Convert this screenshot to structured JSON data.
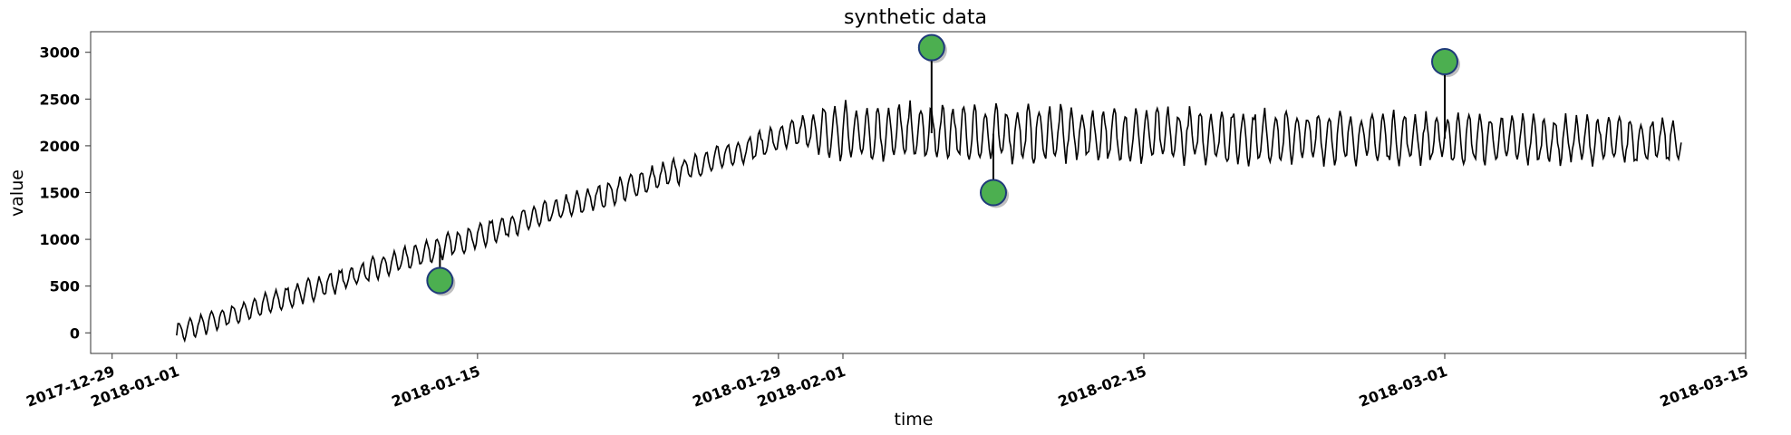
{
  "chart_data": {
    "type": "line",
    "title": "synthetic data",
    "xlabel": "time",
    "ylabel": "value",
    "x_range": [
      "2017-12-28",
      "2018-03-15"
    ],
    "ylim": [
      -220,
      3220
    ],
    "y_ticks": [
      0,
      500,
      1000,
      1500,
      2000,
      2500,
      3000
    ],
    "x_ticks": [
      {
        "date": "2017-12-29",
        "label": "2017-12-29"
      },
      {
        "date": "2018-01-01",
        "label": "2018-01-01"
      },
      {
        "date": "2018-01-15",
        "label": "2018-01-15"
      },
      {
        "date": "2018-01-29",
        "label": "2018-01-29"
      },
      {
        "date": "2018-02-01",
        "label": "2018-02-01"
      },
      {
        "date": "2018-02-15",
        "label": "2018-02-15"
      },
      {
        "date": "2018-03-01",
        "label": "2018-03-01"
      },
      {
        "date": "2018-03-15",
        "label": "2018-03-15"
      }
    ],
    "grid": false,
    "series": [
      {
        "line_color": "#000000",
        "start": "2018-01-01",
        "end": "2018-03-12",
        "points_per_day": 16,
        "period_days": 0.5,
        "trend": [
          {
            "date": "2018-01-01",
            "value": 0
          },
          {
            "date": "2018-01-30",
            "value": 2150
          },
          {
            "date": "2018-03-12",
            "value": 2050
          }
        ],
        "seasonal_amplitude": [
          {
            "date": "2018-01-01",
            "value": 100
          },
          {
            "date": "2018-01-30",
            "value": 130
          },
          {
            "date": "2018-01-31",
            "value": 280
          },
          {
            "date": "2018-03-12",
            "value": 220
          }
        ],
        "points": [
          {
            "date": "2018-01-01",
            "value": 20
          },
          {
            "date": "2018-01-05",
            "value": 250
          },
          {
            "date": "2018-01-10",
            "value": 680
          },
          {
            "date": "2018-01-15",
            "value": 1000
          },
          {
            "date": "2018-01-20",
            "value": 1330
          },
          {
            "date": "2018-01-25",
            "value": 1700
          },
          {
            "date": "2018-01-29",
            "value": 2050
          },
          {
            "date": "2018-02-01",
            "value": 2150
          },
          {
            "date": "2018-02-08",
            "value": 2100
          },
          {
            "date": "2018-02-15",
            "value": 2100
          },
          {
            "date": "2018-02-22",
            "value": 2080
          },
          {
            "date": "2018-03-01",
            "value": 2100
          },
          {
            "date": "2018-03-08",
            "value": 2150
          },
          {
            "date": "2018-03-12",
            "value": 1950
          }
        ]
      }
    ],
    "anomalies": {
      "marker_color": "#4caf50",
      "edge_color": "#1f3a7a",
      "points": [
        {
          "date": "2018-01-13 06:00",
          "value": 560
        },
        {
          "date": "2018-02-05 03:00",
          "value": 3050
        },
        {
          "date": "2018-02-08 00:00",
          "value": 1500
        },
        {
          "date": "2018-03-01 00:00",
          "value": 2900
        }
      ]
    }
  }
}
